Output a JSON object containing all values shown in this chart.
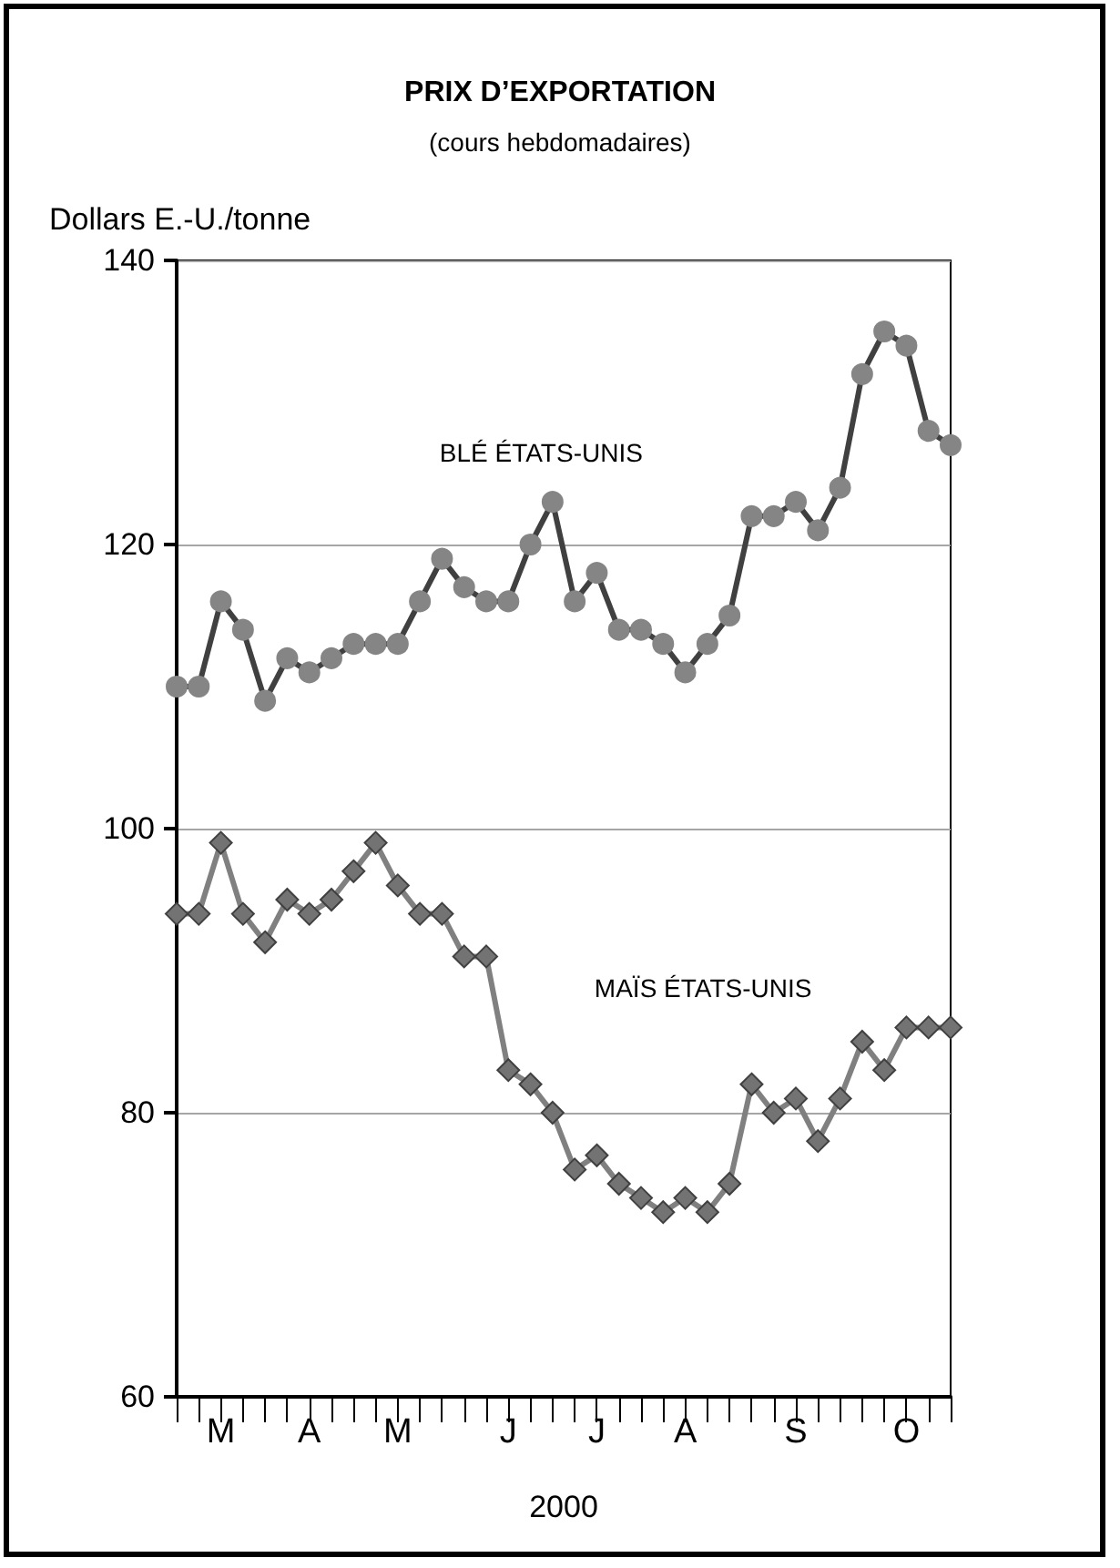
{
  "chart_data": {
    "type": "line",
    "title": "PRIX D’EXPORTATION",
    "subtitle": "(cours hebdomadaires)",
    "ylabel": "Dollars E.-U./tonne",
    "xlabel": "2000",
    "categories": [
      null,
      null,
      "M",
      null,
      null,
      null,
      "A",
      null,
      null,
      null,
      "M",
      null,
      null,
      null,
      null,
      "J",
      null,
      null,
      null,
      "J",
      null,
      null,
      null,
      "A",
      null,
      null,
      null,
      null,
      "S",
      null,
      null,
      null,
      null,
      "O",
      null,
      null
    ],
    "series": [
      {
        "name": "BLÉ ÉTATS-UNIS",
        "color": "#404040",
        "marker": "circle",
        "values": [
          110,
          110,
          116,
          114,
          109,
          112,
          111,
          112,
          113,
          113,
          113,
          116,
          119,
          117,
          116,
          116,
          120,
          123,
          116,
          118,
          114,
          114,
          113,
          111,
          113,
          115,
          122,
          122,
          123,
          121,
          124,
          132,
          135,
          134,
          128,
          127
        ]
      },
      {
        "name": "MAÏS ÉTATS-UNIS",
        "color": "#808080",
        "marker": "diamond",
        "values": [
          94,
          94,
          99,
          94,
          92,
          95,
          94,
          95,
          97,
          99,
          96,
          94,
          94,
          91,
          91,
          83,
          82,
          80,
          76,
          77,
          75,
          74,
          73,
          74,
          73,
          75,
          82,
          80,
          81,
          78,
          81,
          85,
          83,
          86,
          86,
          86
        ]
      }
    ],
    "ylim": [
      60,
      140
    ],
    "yticks": [
      60,
      80,
      100,
      120,
      140
    ],
    "grid": "y",
    "legend": false
  }
}
